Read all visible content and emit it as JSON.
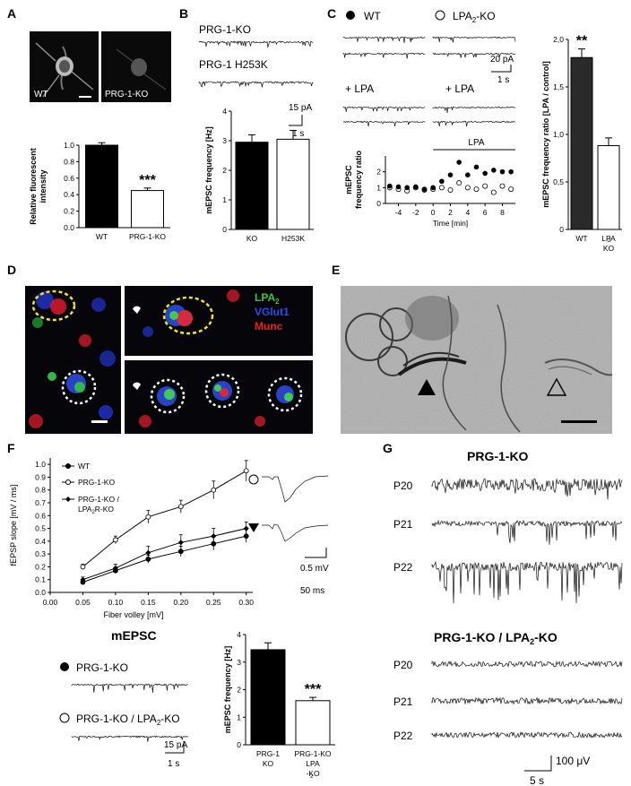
{
  "panels": {
    "A": {
      "label": "A",
      "image_labels": [
        "WT",
        "PRG-1-KO"
      ],
      "chart": {
        "type": "bar",
        "categories": [
          "WT",
          "PRG-1-KO"
        ],
        "values": [
          1.0,
          0.45
        ],
        "errors": [
          0.03,
          0.03
        ],
        "ylabel": "Relative fluorescent\nintensity",
        "ylabel_lines": [
          "Relative fluorescent",
          "intensity"
        ],
        "ylim": [
          0,
          1.0
        ],
        "yticks": [
          "0.0",
          "0.2",
          "0.4",
          "0.6",
          "0.8",
          "1.0"
        ],
        "significance": "***"
      }
    },
    "B": {
      "label": "B",
      "trace_labels": [
        "PRG-1-KO",
        "PRG-1 H253K"
      ],
      "scale": {
        "amp": "15 pA",
        "time": "1 s"
      },
      "chart": {
        "type": "bar",
        "categories": [
          "KO",
          "H253K"
        ],
        "values": [
          2.95,
          3.05
        ],
        "errors": [
          0.25,
          0.3
        ],
        "ylabel": "mEPSC frequency [Hz]",
        "ylim": [
          0,
          4
        ],
        "yticks": [
          "0",
          "1",
          "2",
          "3",
          "4"
        ]
      }
    },
    "C": {
      "label": "C",
      "legend": {
        "filled": "WT",
        "open_prefix": "LPA",
        "open_sub": "2",
        "open_suffix": "-KO"
      },
      "lpa_labels": [
        "+ LPA",
        "+ LPA"
      ],
      "scale": {
        "amp": "20 pA",
        "time": "1 s"
      },
      "timecourse": {
        "type": "scatter",
        "xlabel": "Time [min]",
        "ylabel_lines": [
          "mEPSC",
          "frequency ratio"
        ],
        "xticks": [
          "-4",
          "-2",
          "0",
          "2",
          "4",
          "6",
          "8"
        ],
        "yticks": [
          "0",
          "1",
          "2"
        ],
        "lpa_bar_label": "LPA",
        "wt": {
          "x": [
            -5,
            -4,
            -3,
            -2,
            -1,
            0,
            1,
            2,
            3,
            4,
            5,
            6,
            7,
            8,
            9
          ],
          "y": [
            1.1,
            1.05,
            1.0,
            1.05,
            0.9,
            1.0,
            1.4,
            1.8,
            2.6,
            1.8,
            2.3,
            1.9,
            2.1,
            2.0,
            2.0
          ]
        },
        "ko": {
          "x": [
            -5,
            -4,
            -3,
            -2,
            -1,
            0,
            1,
            2,
            3,
            4,
            5,
            6,
            7,
            8,
            9
          ],
          "y": [
            1.0,
            0.9,
            0.8,
            1.0,
            0.85,
            0.9,
            1.0,
            0.85,
            1.3,
            1.0,
            0.9,
            1.1,
            0.7,
            1.1,
            0.9
          ]
        }
      },
      "chart": {
        "type": "bar",
        "categories": [
          "WT",
          "LPA2 KO"
        ],
        "cat_lines": [
          [
            "WT"
          ],
          [
            "LPA",
            "KO"
          ]
        ],
        "values": [
          1.99,
          0.97
        ],
        "errors": [
          0.1,
          0.09
        ],
        "ylabel": "mEPSC frequency ratio [LPA / control]",
        "ylim": [
          0,
          2.2
        ],
        "yticks": [
          "0",
          "0,5",
          "1,0",
          "1,5",
          "2,0"
        ],
        "significance": "**"
      }
    },
    "D": {
      "label": "D",
      "legend": [
        {
          "text": "LPA",
          "sub": "2",
          "color": "#35c83a"
        },
        {
          "text": "VGlut1",
          "sub": "",
          "color": "#2d4cf5"
        },
        {
          "text": "Munc",
          "sub": "",
          "color": "#ee2020"
        }
      ]
    },
    "E": {
      "label": "E"
    },
    "F": {
      "label": "F",
      "chart": {
        "type": "line",
        "xlabel": "Fiber volley [mV]",
        "ylabel": "fEPSP slope [mV / ms]",
        "xticks": [
          "0.00",
          "0.05",
          "0.10",
          "0.15",
          "0.20",
          "0.25",
          "0.30"
        ],
        "yticks": [
          "0.0",
          "0.1",
          "0.2",
          "0.3",
          "0.4",
          "0.5",
          "0.6",
          "0.7",
          "0.8",
          "0.9",
          "1.0"
        ],
        "x": [
          0.05,
          0.1,
          0.15,
          0.2,
          0.25,
          0.3
        ],
        "series": [
          {
            "name": "WT",
            "values": [
              0.08,
              0.17,
              0.26,
              0.32,
              0.38,
              0.44
            ],
            "errors": [
              0.01,
              0.02,
              0.03,
              0.04,
              0.05,
              0.05
            ]
          },
          {
            "name": "PRG-1-KO",
            "values": [
              0.2,
              0.41,
              0.59,
              0.67,
              0.8,
              0.95
            ],
            "errors": [
              0.02,
              0.03,
              0.05,
              0.05,
              0.07,
              0.08
            ]
          },
          {
            "name": "PRG-1-KO / LPA2R-KO",
            "values": [
              0.1,
              0.19,
              0.31,
              0.39,
              0.44,
              0.5
            ],
            "errors": [
              0.02,
              0.03,
              0.05,
              0.06,
              0.06,
              0.05
            ]
          }
        ],
        "legend_lines": [
          [
            "WT"
          ],
          [
            "PRG-1-KO"
          ],
          [
            "PRG-1-KO /",
            "LPA",
            "R-KO"
          ]
        ]
      },
      "scale": {
        "amp": "0.5 mV",
        "time": "50 ms"
      },
      "mepsc_title": "mEPSC",
      "mepsc_labels": {
        "first": "PRG-1-KO",
        "second_prefix": "PRG-1-KO / LPA",
        "second_sub": "2",
        "second_suffix": "-KO"
      },
      "mepsc_scale": {
        "amp": "15 pA",
        "time": "1 s"
      },
      "bar": {
        "type": "bar",
        "categories": [
          "PRG-1 KO",
          "PRG-1-KO LPA2-KO"
        ],
        "cat_lines": [
          [
            "PRG-1",
            "KO"
          ],
          [
            "PRG-1-KO",
            "LPA",
            "-KO"
          ]
        ],
        "values": [
          3.45,
          1.6
        ],
        "errors": [
          0.25,
          0.12
        ],
        "ylabel": "mEPSC frequency [Hz]",
        "ylim": [
          0,
          4
        ],
        "yticks": [
          "0",
          "1",
          "2",
          "3",
          "4"
        ],
        "significance": "***"
      }
    },
    "G": {
      "label": "G",
      "title1": "PRG-1-KO",
      "title2": "PRG-1-KO / LPA",
      "title2_sub": "2",
      "title2_suffix": "-KO",
      "rows": [
        "P20",
        "P21",
        "P22"
      ],
      "scale": {
        "amp": "100 μV",
        "time": "5 s"
      }
    }
  }
}
